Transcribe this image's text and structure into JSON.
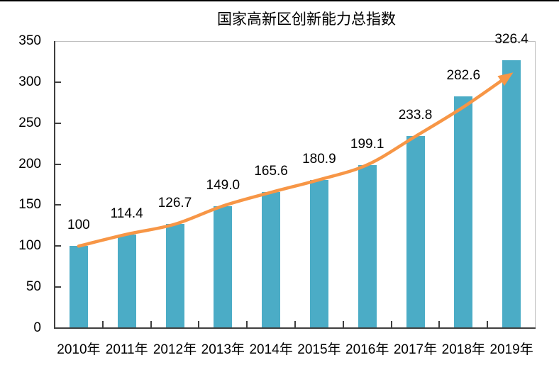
{
  "title": "国家高新区创新能力总指数",
  "chart_data": {
    "type": "bar",
    "title": "国家高新区创新能力总指数",
    "categories": [
      "2010年",
      "2011年",
      "2012年",
      "2013年",
      "2014年",
      "2015年",
      "2016年",
      "2017年",
      "2018年",
      "2019年"
    ],
    "values": [
      100,
      114.4,
      126.7,
      149.0,
      165.6,
      180.9,
      199.1,
      233.8,
      282.6,
      326.4
    ],
    "data_labels": [
      "100",
      "114.4",
      "126.7",
      "149.0",
      "165.6",
      "180.9",
      "199.1",
      "233.8",
      "282.6",
      "326.4"
    ],
    "xlabel": "",
    "ylabel": "",
    "ylim": [
      0,
      350
    ],
    "yticks": [
      "0",
      "50",
      "100",
      "150",
      "200",
      "250",
      "300",
      "350"
    ],
    "ytick_interval": 50,
    "grid": false,
    "legend": false,
    "annotations": [
      {
        "type": "trend-arrow",
        "description": "smooth orange curve through bar tops ending in arrowhead at 2019 bar"
      }
    ]
  },
  "colors": {
    "bar": "#4BACC6",
    "trend_arrow": "#F79646",
    "axis": "#3F3F3F",
    "plot_border": "#BFBFBF",
    "text": "#000000",
    "top_edge": "#000000",
    "background": "#FFFFFF"
  }
}
